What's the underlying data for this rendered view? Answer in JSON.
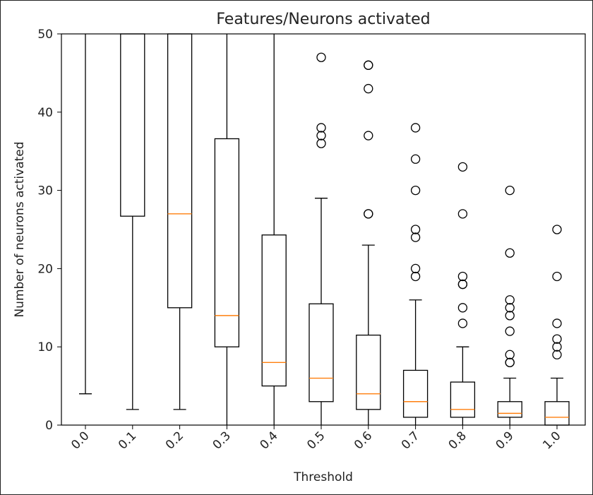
{
  "chart_data": {
    "type": "box",
    "title": "Features/Neurons activated",
    "xlabel": "Threshold",
    "ylabel": "Number of neurons activated",
    "ylim": [
      0,
      50
    ],
    "yticks": [
      0,
      10,
      20,
      30,
      40,
      50
    ],
    "categories": [
      "0.0",
      "0.1",
      "0.2",
      "0.3",
      "0.4",
      "0.5",
      "0.6",
      "0.7",
      "0.8",
      "0.9",
      "1.0"
    ],
    "boxes": [
      {
        "label": "0.0",
        "whisker_low": 4,
        "q1": null,
        "median": null,
        "q3": null,
        "whisker_high": 50,
        "outliers": []
      },
      {
        "label": "0.1",
        "whisker_low": 2,
        "q1": 26.7,
        "median": null,
        "q3": 50,
        "whisker_high": 50,
        "outliers": []
      },
      {
        "label": "0.2",
        "whisker_low": 2,
        "q1": 15,
        "median": 27,
        "q3": 50,
        "whisker_high": 50,
        "outliers": []
      },
      {
        "label": "0.3",
        "whisker_low": 0,
        "q1": 10,
        "median": 14,
        "q3": 36.6,
        "whisker_high": 50,
        "outliers": []
      },
      {
        "label": "0.4",
        "whisker_low": 0,
        "q1": 5,
        "median": 8,
        "q3": 24.3,
        "whisker_high": 50,
        "outliers": []
      },
      {
        "label": "0.5",
        "whisker_low": 0,
        "q1": 3,
        "median": 6,
        "q3": 15.5,
        "whisker_high": 29,
        "outliers": [
          36,
          37,
          38,
          47
        ]
      },
      {
        "label": "0.6",
        "whisker_low": 0,
        "q1": 2,
        "median": 4,
        "q3": 11.5,
        "whisker_high": 23,
        "outliers": [
          27,
          27,
          37,
          43,
          46,
          46
        ]
      },
      {
        "label": "0.7",
        "whisker_low": 0,
        "q1": 1,
        "median": 3,
        "q3": 7,
        "whisker_high": 16,
        "outliers": [
          19,
          20,
          24,
          25,
          30,
          34,
          38
        ]
      },
      {
        "label": "0.8",
        "whisker_low": 0,
        "q1": 1,
        "median": 2,
        "q3": 5.5,
        "whisker_high": 10,
        "outliers": [
          13,
          15,
          18,
          18,
          19,
          27,
          33
        ]
      },
      {
        "label": "0.9",
        "whisker_low": 0,
        "q1": 1,
        "median": 1.5,
        "q3": 3,
        "whisker_high": 6,
        "outliers": [
          8,
          8,
          9,
          12,
          14,
          15,
          16,
          22,
          30
        ]
      },
      {
        "label": "1.0",
        "whisker_low": 0,
        "q1": 0,
        "median": 1,
        "q3": 3,
        "whisker_high": 6,
        "outliers": [
          9,
          10,
          11,
          13,
          19,
          25
        ]
      }
    ],
    "colors": {
      "box": "#000000",
      "median": "#ff7f0e",
      "outlier": "#000000"
    },
    "grid": false,
    "legend": "none"
  }
}
